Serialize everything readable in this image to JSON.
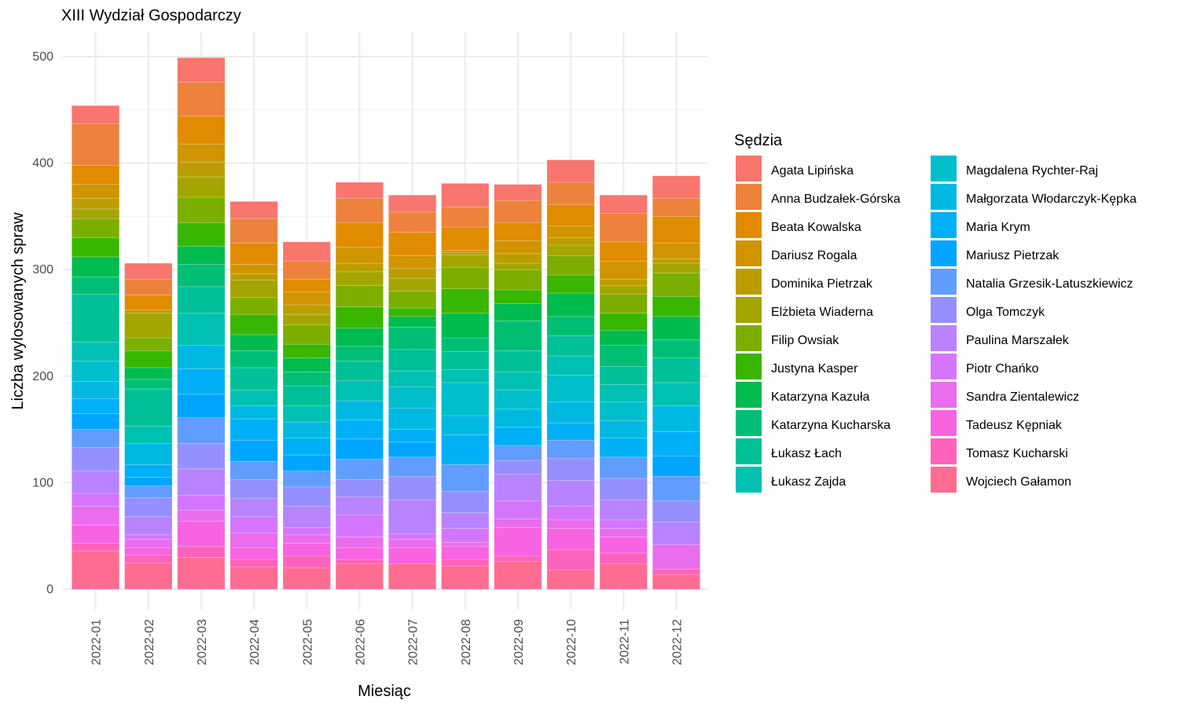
{
  "chart_data": {
    "type": "bar",
    "stacked": true,
    "title": "XIII Wydział Gospodarczy",
    "xlabel": "Miesiąc",
    "ylabel": "Liczba wylosowanych spraw",
    "legend_title": "Sędzia",
    "legend_position": "right",
    "grid": true,
    "ylim": [
      0,
      530
    ],
    "yticks": [
      0,
      100,
      200,
      300,
      400,
      500
    ],
    "categories": [
      "2022-01",
      "2022-02",
      "2022-03",
      "2022-04",
      "2022-05",
      "2022-06",
      "2022-07",
      "2022-08",
      "2022-09",
      "2022-10",
      "2022-11",
      "2022-12"
    ],
    "series": [
      {
        "name": "Agata Lipińska",
        "color": "#F8766D",
        "values": [
          17,
          15,
          23,
          16,
          18,
          15,
          16,
          22,
          15,
          21,
          17,
          21
        ]
      },
      {
        "name": "Anna Budzałek-Górska",
        "color": "#EC823C",
        "values": [
          39,
          15,
          32,
          23,
          17,
          23,
          19,
          19,
          21,
          21,
          27,
          17
        ]
      },
      {
        "name": "Beata Kowalska",
        "color": "#E08B00",
        "values": [
          18,
          14,
          26,
          20,
          12,
          23,
          22,
          22,
          17,
          20,
          18,
          25
        ]
      },
      {
        "name": "Dariusz Rogala",
        "color": "#D09400",
        "values": [
          13,
          0,
          17,
          9,
          12,
          15,
          12,
          2,
          12,
          11,
          17,
          15
        ]
      },
      {
        "name": "Dominika Pietrzak",
        "color": "#BB9D00",
        "values": [
          10,
          3,
          14,
          6,
          9,
          8,
          9,
          2,
          9,
          7,
          6,
          4
        ]
      },
      {
        "name": "Elżbieta Wiaderna",
        "color": "#A3A500",
        "values": [
          9,
          23,
          19,
          16,
          10,
          13,
          12,
          12,
          6,
          10,
          8,
          9
        ]
      },
      {
        "name": "Filip Owsiak",
        "color": "#7CAE00",
        "values": [
          18,
          12,
          24,
          16,
          18,
          20,
          16,
          20,
          19,
          18,
          18,
          22
        ]
      },
      {
        "name": "Justyna Kasper",
        "color": "#39B600",
        "values": [
          18,
          16,
          22,
          19,
          13,
          20,
          8,
          23,
          13,
          17,
          16,
          19
        ]
      },
      {
        "name": "Katarzyna Kazuła",
        "color": "#00BB4E",
        "values": [
          19,
          11,
          17,
          15,
          13,
          17,
          10,
          23,
          16,
          22,
          14,
          22
        ]
      },
      {
        "name": "Katarzyna Kucharska",
        "color": "#00BF74",
        "values": [
          16,
          9,
          21,
          16,
          13,
          14,
          21,
          13,
          28,
          18,
          20,
          17
        ]
      },
      {
        "name": "Łukasz Łach",
        "color": "#00C097",
        "values": [
          45,
          35,
          25,
          21,
          19,
          18,
          20,
          17,
          20,
          19,
          17,
          23
        ]
      },
      {
        "name": "Łukasz Zajda",
        "color": "#00C1B2",
        "values": [
          18,
          16,
          30,
          15,
          15,
          19,
          15,
          12,
          17,
          18,
          16,
          22
        ]
      },
      {
        "name": "Magdalena Rychter-Raj",
        "color": "#00BECB",
        "values": [
          19,
          0,
          0,
          0,
          0,
          0,
          20,
          31,
          18,
          25,
          18,
          0
        ]
      },
      {
        "name": "Małgorzata Włodarczyk-Kępka",
        "color": "#00B9E3",
        "values": [
          16,
          20,
          22,
          12,
          15,
          18,
          20,
          18,
          17,
          20,
          16,
          24
        ]
      },
      {
        "name": "Maria Krym",
        "color": "#00B0F6",
        "values": [
          14,
          12,
          24,
          20,
          16,
          18,
          12,
          28,
          17,
          16,
          18,
          23
        ]
      },
      {
        "name": "Mariusz Pietrzak",
        "color": "#00A5FF",
        "values": [
          15,
          8,
          22,
          20,
          15,
          19,
          14,
          0,
          0,
          0,
          0,
          19
        ]
      },
      {
        "name": "Natalia Grzesik-Latuszkiewicz",
        "color": "#619CFF",
        "values": [
          17,
          11,
          24,
          17,
          15,
          19,
          18,
          25,
          14,
          17,
          20,
          23
        ]
      },
      {
        "name": "Olga Tomczyk",
        "color": "#9590FF",
        "values": [
          22,
          18,
          24,
          18,
          18,
          16,
          22,
          20,
          13,
          21,
          20,
          20
        ]
      },
      {
        "name": "Paulina Marszałek",
        "color": "#B983FF",
        "values": [
          21,
          17,
          25,
          17,
          20,
          17,
          32,
          15,
          25,
          24,
          19,
          21
        ]
      },
      {
        "name": "Piotr Chańko",
        "color": "#D575FE",
        "values": [
          12,
          4,
          14,
          15,
          7,
          21,
          5,
          13,
          17,
          13,
          8,
          0
        ]
      },
      {
        "name": "Sandra Zientalewicz",
        "color": "#E96DEC",
        "values": [
          18,
          8,
          10,
          14,
          8,
          10,
          8,
          4,
          8,
          8,
          8,
          23
        ]
      },
      {
        "name": "Tadeusz Kępniak",
        "color": "#F763E0",
        "values": [
          17,
          7,
          24,
          11,
          12,
          11,
          15,
          12,
          27,
          20,
          15,
          0
        ]
      },
      {
        "name": "Tomasz Kucharski",
        "color": "#FF62BC",
        "values": [
          7,
          7,
          10,
          7,
          11,
          4,
          0,
          6,
          5,
          19,
          10,
          5
        ]
      },
      {
        "name": "Wojciech Gałamon",
        "color": "#FF6C91",
        "values": [
          36,
          25,
          30,
          21,
          20,
          24,
          24,
          22,
          26,
          18,
          24,
          14
        ]
      }
    ]
  }
}
